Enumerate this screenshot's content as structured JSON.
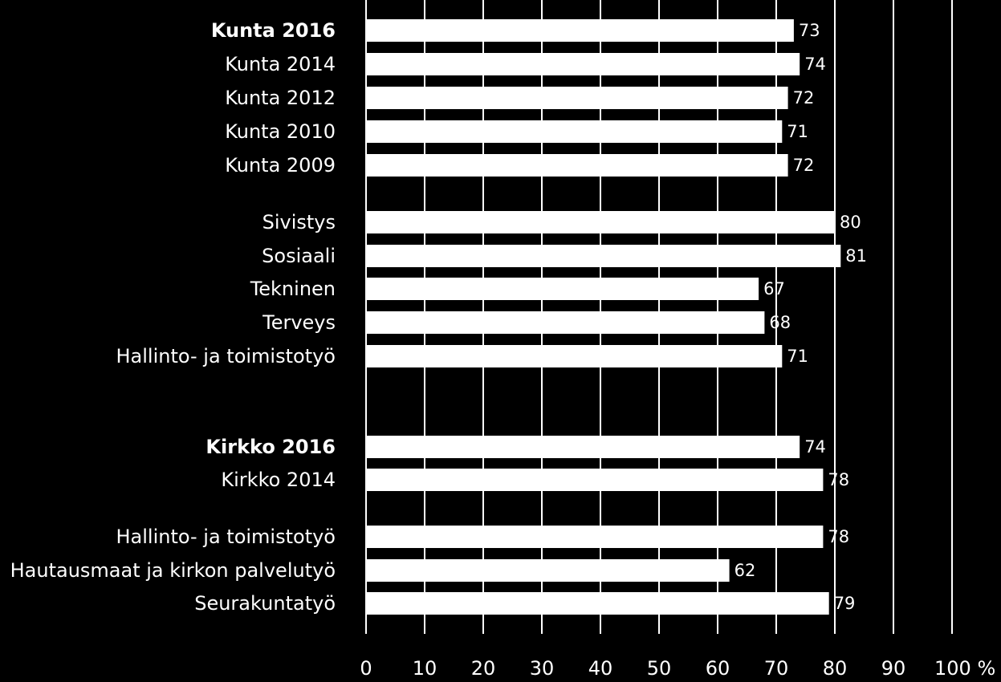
{
  "chart_data": {
    "type": "bar",
    "orientation": "horizontal",
    "categories": [
      "Kunta 2016",
      "Kunta 2014",
      "Kunta 2012",
      "Kunta 2010",
      "Kunta 2009",
      "Sivistys",
      "Sosiaali",
      "Tekninen",
      "Terveys",
      "Hallinto- ja toimistotyö",
      "Kirkko 2016",
      "Kirkko 2014",
      "Hallinto- ja toimistotyö",
      "Hautausmaat ja kirkon palvelutyö",
      "Seurakuntatyö"
    ],
    "bold_categories": [
      "Kunta 2016",
      "Kirkko 2016"
    ],
    "values": [
      73,
      74,
      72,
      71,
      72,
      80,
      81,
      67,
      68,
      71,
      74,
      78,
      78,
      62,
      79
    ],
    "xlim": [
      0,
      100
    ],
    "xticks": [
      0,
      10,
      20,
      30,
      40,
      50,
      60,
      70,
      80,
      90,
      100
    ],
    "xtick_labels": [
      "0",
      "10",
      "20",
      "30",
      "40",
      "50",
      "60",
      "70",
      "80",
      "90",
      "100 %"
    ],
    "title": "",
    "xlabel": "",
    "ylabel": "",
    "grid": "vertical",
    "legend": "none",
    "colors": {
      "background": "#000000",
      "bar": "#ffffff",
      "grid": "#ffffff",
      "text": "#ffffff"
    }
  }
}
